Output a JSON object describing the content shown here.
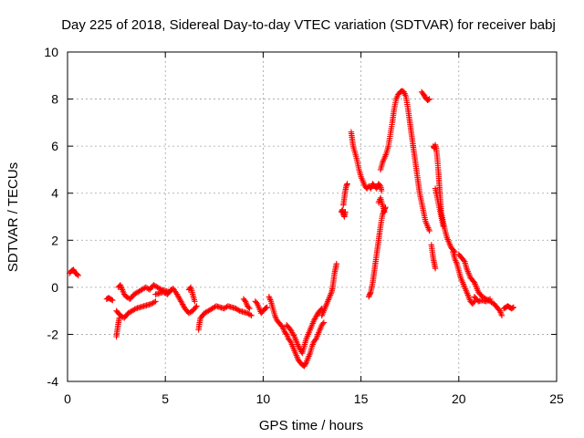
{
  "chart_data": {
    "type": "scatter",
    "title": "Day 225 of 2018, Sidereal Day-to-day VTEC variation (SDTVAR) for receiver babj",
    "xlabel": "GPS time / hours",
    "ylabel": "SDTVAR / TECUs",
    "xlim": [
      0,
      25
    ],
    "ylim": [
      -4,
      10
    ],
    "xticks": [
      0,
      5,
      10,
      15,
      20,
      25
    ],
    "yticks": [
      -4,
      -2,
      0,
      2,
      4,
      6,
      8,
      10
    ],
    "grid": true,
    "marker": "plus",
    "series": [
      {
        "name": "SDTVAR",
        "color": "#ff0000",
        "segments": [
          [
            [
              0.1,
              0.6
            ],
            [
              0.2,
              0.7
            ],
            [
              0.3,
              0.75
            ],
            [
              0.4,
              0.6
            ],
            [
              0.5,
              0.55
            ],
            [
              0.55,
              0.5
            ]
          ],
          [
            [
              2.0,
              -0.5
            ],
            [
              2.1,
              -0.45
            ],
            [
              2.2,
              -0.5
            ],
            [
              2.3,
              -0.55
            ]
          ],
          [
            [
              2.5,
              -2.1
            ],
            [
              2.55,
              -1.8
            ],
            [
              2.6,
              -1.5
            ],
            [
              2.65,
              -1.3
            ]
          ],
          [
            [
              2.5,
              -1.0
            ],
            [
              2.7,
              -1.2
            ],
            [
              2.9,
              -1.3
            ],
            [
              3.1,
              -1.1
            ],
            [
              3.3,
              -1.0
            ],
            [
              3.5,
              -0.9
            ],
            [
              3.7,
              -0.85
            ],
            [
              3.9,
              -0.8
            ],
            [
              4.1,
              -0.75
            ],
            [
              4.3,
              -0.7
            ],
            [
              4.5,
              -0.6
            ]
          ],
          [
            [
              2.6,
              0.0
            ],
            [
              2.7,
              0.1
            ],
            [
              2.8,
              -0.1
            ],
            [
              2.9,
              -0.3
            ],
            [
              3.0,
              -0.4
            ],
            [
              3.2,
              -0.5
            ],
            [
              3.4,
              -0.3
            ],
            [
              3.6,
              -0.2
            ],
            [
              3.8,
              -0.1
            ],
            [
              4.0,
              0.0
            ],
            [
              4.2,
              -0.1
            ],
            [
              4.4,
              0.1
            ],
            [
              4.6,
              0.0
            ],
            [
              4.8,
              -0.1
            ],
            [
              5.0,
              -0.15
            ],
            [
              5.2,
              -0.2
            ],
            [
              5.4,
              -0.05
            ],
            [
              5.6,
              -0.3
            ],
            [
              5.8,
              -0.6
            ],
            [
              6.0,
              -0.9
            ],
            [
              6.2,
              -1.1
            ],
            [
              6.4,
              -1.0
            ],
            [
              6.6,
              -0.8
            ]
          ],
          [
            [
              4.5,
              -0.3
            ],
            [
              4.7,
              -0.25
            ],
            [
              4.9,
              -0.2
            ],
            [
              5.1,
              -0.3
            ],
            [
              5.3,
              -0.1
            ]
          ],
          [
            [
              6.2,
              -0.1
            ],
            [
              6.3,
              0.0
            ],
            [
              6.4,
              -0.3
            ],
            [
              6.5,
              -0.6
            ]
          ],
          [
            [
              6.7,
              -1.8
            ],
            [
              6.75,
              -1.5
            ],
            [
              6.8,
              -1.3
            ],
            [
              6.9,
              -1.2
            ],
            [
              7.0,
              -1.1
            ],
            [
              7.2,
              -1.0
            ],
            [
              7.4,
              -0.9
            ],
            [
              7.6,
              -0.8
            ],
            [
              7.8,
              -0.85
            ],
            [
              8.0,
              -0.9
            ],
            [
              8.2,
              -0.8
            ],
            [
              8.4,
              -0.85
            ],
            [
              8.6,
              -0.9
            ],
            [
              8.8,
              -1.0
            ],
            [
              9.0,
              -1.05
            ],
            [
              9.2,
              -1.1
            ],
            [
              9.4,
              -1.2
            ]
          ],
          [
            [
              9.0,
              -0.5
            ],
            [
              9.1,
              -0.6
            ],
            [
              9.2,
              -0.8
            ],
            [
              9.3,
              -0.9
            ]
          ],
          [
            [
              9.6,
              -0.6
            ],
            [
              9.7,
              -0.7
            ],
            [
              9.8,
              -0.9
            ],
            [
              9.9,
              -1.1
            ],
            [
              10.0,
              -1.0
            ],
            [
              10.1,
              -0.9
            ],
            [
              10.2,
              -0.85
            ]
          ],
          [
            [
              10.3,
              -0.4
            ],
            [
              10.4,
              -0.6
            ],
            [
              10.5,
              -0.9
            ],
            [
              10.6,
              -1.2
            ],
            [
              10.7,
              -1.4
            ],
            [
              10.8,
              -1.5
            ],
            [
              10.9,
              -1.6
            ],
            [
              11.0,
              -1.7
            ],
            [
              11.1,
              -1.9
            ],
            [
              11.2,
              -2.0
            ],
            [
              11.3,
              -2.2
            ],
            [
              11.4,
              -2.3
            ],
            [
              11.5,
              -2.5
            ],
            [
              11.6,
              -2.7
            ],
            [
              11.7,
              -2.9
            ],
            [
              11.8,
              -3.1
            ],
            [
              11.9,
              -3.2
            ],
            [
              12.0,
              -3.3
            ],
            [
              12.1,
              -3.35
            ],
            [
              12.2,
              -3.2
            ],
            [
              12.3,
              -3.0
            ],
            [
              12.4,
              -2.8
            ],
            [
              12.5,
              -2.5
            ],
            [
              12.6,
              -2.3
            ],
            [
              12.7,
              -2.2
            ],
            [
              12.8,
              -2.0
            ],
            [
              12.9,
              -1.8
            ],
            [
              13.0,
              -1.6
            ],
            [
              13.1,
              -1.5
            ]
          ],
          [
            [
              11.2,
              -1.6
            ],
            [
              11.4,
              -1.8
            ],
            [
              11.6,
              -2.1
            ],
            [
              11.8,
              -2.5
            ],
            [
              12.0,
              -2.8
            ],
            [
              12.2,
              -2.2
            ],
            [
              12.4,
              -1.8
            ],
            [
              12.6,
              -1.4
            ],
            [
              12.8,
              -1.1
            ],
            [
              13.0,
              -0.9
            ]
          ],
          [
            [
              13.0,
              -1.2
            ],
            [
              13.1,
              -1.0
            ],
            [
              13.2,
              -0.8
            ],
            [
              13.3,
              -0.6
            ],
            [
              13.4,
              -0.4
            ],
            [
              13.5,
              -0.2
            ],
            [
              13.55,
              0.0
            ],
            [
              13.6,
              0.3
            ],
            [
              13.65,
              0.6
            ],
            [
              13.7,
              0.8
            ],
            [
              13.75,
              1.0
            ]
          ],
          [
            [
              14.0,
              3.2
            ],
            [
              14.05,
              3.3
            ],
            [
              14.1,
              3.1
            ],
            [
              14.15,
              3.0
            ],
            [
              14.2,
              3.2
            ]
          ],
          [
            [
              14.1,
              3.5
            ],
            [
              14.15,
              3.8
            ],
            [
              14.2,
              4.1
            ],
            [
              14.25,
              4.3
            ],
            [
              14.3,
              4.4
            ]
          ],
          [
            [
              14.5,
              6.6
            ],
            [
              14.55,
              6.3
            ],
            [
              14.6,
              6.0
            ],
            [
              14.7,
              5.7
            ],
            [
              14.8,
              5.4
            ],
            [
              14.9,
              5.0
            ],
            [
              15.0,
              4.7
            ],
            [
              15.1,
              4.5
            ],
            [
              15.2,
              4.3
            ],
            [
              15.3,
              4.2
            ],
            [
              15.4,
              4.3
            ],
            [
              15.5,
              4.2
            ],
            [
              15.6,
              4.4
            ],
            [
              15.7,
              4.3
            ],
            [
              15.8,
              4.2
            ],
            [
              15.9,
              4.4
            ],
            [
              16.0,
              4.3
            ],
            [
              16.05,
              4.1
            ]
          ],
          [
            [
              15.4,
              -0.4
            ],
            [
              15.45,
              -0.3
            ],
            [
              15.5,
              -0.2
            ],
            [
              15.6,
              0.2
            ],
            [
              15.7,
              0.8
            ],
            [
              15.8,
              1.4
            ],
            [
              15.9,
              2.0
            ],
            [
              16.0,
              2.6
            ],
            [
              16.1,
              3.1
            ],
            [
              16.2,
              3.3
            ],
            [
              16.25,
              3.4
            ]
          ],
          [
            [
              15.9,
              3.6
            ],
            [
              16.0,
              3.8
            ],
            [
              16.1,
              3.5
            ],
            [
              16.2,
              3.2
            ]
          ],
          [
            [
              16.0,
              5.0
            ],
            [
              16.1,
              5.3
            ],
            [
              16.2,
              5.5
            ],
            [
              16.3,
              5.7
            ],
            [
              16.4,
              6.0
            ],
            [
              16.5,
              6.5
            ],
            [
              16.6,
              7.0
            ],
            [
              16.7,
              7.6
            ],
            [
              16.8,
              8.0
            ],
            [
              16.9,
              8.2
            ],
            [
              17.0,
              8.3
            ],
            [
              17.1,
              8.35
            ],
            [
              17.2,
              8.3
            ],
            [
              17.3,
              8.1
            ],
            [
              17.4,
              7.6
            ],
            [
              17.5,
              7.0
            ],
            [
              17.6,
              6.4
            ],
            [
              17.7,
              5.8
            ],
            [
              17.8,
              5.2
            ],
            [
              17.9,
              4.6
            ],
            [
              18.0,
              4.0
            ],
            [
              18.1,
              3.6
            ],
            [
              18.2,
              3.2
            ],
            [
              18.3,
              2.8
            ],
            [
              18.4,
              2.6
            ],
            [
              18.5,
              2.4
            ]
          ],
          [
            [
              18.1,
              8.3
            ],
            [
              18.2,
              8.2
            ],
            [
              18.3,
              8.05
            ],
            [
              18.4,
              7.95
            ],
            [
              18.5,
              8.0
            ]
          ],
          [
            [
              18.7,
              6.0
            ],
            [
              18.75,
              5.9
            ],
            [
              18.8,
              6.05
            ],
            [
              18.85,
              5.9
            ],
            [
              18.9,
              5.5
            ],
            [
              18.95,
              5.0
            ],
            [
              19.0,
              4.4
            ],
            [
              19.05,
              3.8
            ],
            [
              19.1,
              3.2
            ],
            [
              19.2,
              2.8
            ],
            [
              19.3,
              2.4
            ],
            [
              19.4,
              2.1
            ],
            [
              19.5,
              1.9
            ],
            [
              19.6,
              1.7
            ],
            [
              19.7,
              1.6
            ],
            [
              19.8,
              1.5
            ]
          ],
          [
            [
              18.6,
              1.8
            ],
            [
              18.65,
              1.5
            ],
            [
              18.7,
              1.2
            ],
            [
              18.75,
              1.0
            ],
            [
              18.8,
              0.8
            ]
          ],
          [
            [
              18.8,
              4.2
            ],
            [
              18.9,
              3.8
            ],
            [
              19.0,
              3.4
            ],
            [
              19.1,
              3.0
            ],
            [
              19.2,
              2.6
            ]
          ],
          [
            [
              19.7,
              1.5
            ],
            [
              19.8,
              1.2
            ],
            [
              19.9,
              1.0
            ],
            [
              20.0,
              0.7
            ],
            [
              20.1,
              0.4
            ],
            [
              20.2,
              0.2
            ],
            [
              20.3,
              0.0
            ],
            [
              20.4,
              -0.2
            ],
            [
              20.5,
              -0.4
            ],
            [
              20.6,
              -0.6
            ],
            [
              20.7,
              -0.7
            ],
            [
              20.8,
              -0.6
            ]
          ],
          [
            [
              20.0,
              1.4
            ],
            [
              20.1,
              1.3
            ],
            [
              20.2,
              1.2
            ],
            [
              20.3,
              1.1
            ],
            [
              20.4,
              0.8
            ],
            [
              20.5,
              0.6
            ],
            [
              20.6,
              0.4
            ],
            [
              20.7,
              0.3
            ],
            [
              20.8,
              0.2
            ],
            [
              20.9,
              0.0
            ],
            [
              21.0,
              -0.2
            ],
            [
              21.2,
              -0.4
            ],
            [
              21.4,
              -0.5
            ],
            [
              21.6,
              -0.6
            ],
            [
              21.8,
              -0.7
            ],
            [
              22.0,
              -0.9
            ],
            [
              22.1,
              -1.0
            ],
            [
              22.2,
              -1.2
            ]
          ],
          [
            [
              20.8,
              -0.4
            ],
            [
              20.9,
              -0.5
            ],
            [
              21.0,
              -0.6
            ],
            [
              21.2,
              -0.55
            ],
            [
              21.4,
              -0.6
            ],
            [
              21.6,
              -0.5
            ]
          ],
          [
            [
              22.3,
              -0.9
            ],
            [
              22.4,
              -0.85
            ],
            [
              22.5,
              -0.8
            ],
            [
              22.6,
              -0.85
            ],
            [
              22.7,
              -0.9
            ],
            [
              22.8,
              -0.85
            ]
          ]
        ]
      }
    ]
  }
}
